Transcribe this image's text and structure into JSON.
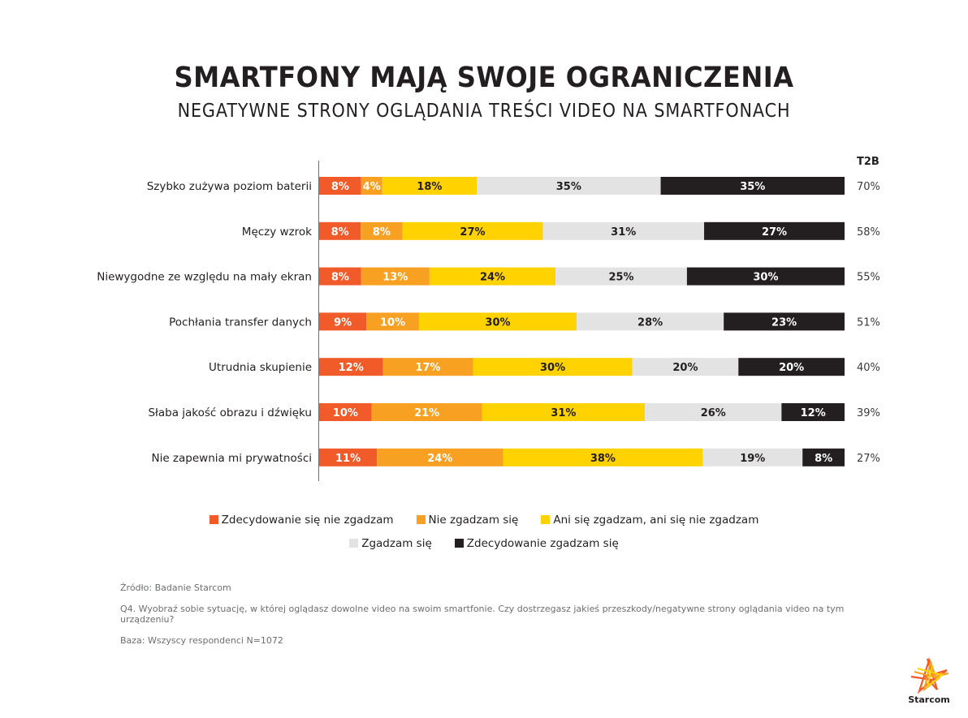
{
  "header": {
    "title": "SMARTFONY MAJĄ SWOJE OGRANICZENIA",
    "subtitle": "NEGATYWNE STRONY OGLĄDANIA TREŚCI VIDEO NA SMARTFONACH"
  },
  "chart_data": {
    "type": "bar",
    "orientation": "horizontal",
    "stacked": true,
    "title": "SMARTFONY MAJĄ SWOJE OGRANICZENIA",
    "subtitle": "NEGATYWNE STRONY OGLĄDANIA TREŚCI VIDEO NA SMARTFONACH",
    "xlabel": "",
    "ylabel": "",
    "unit": "%",
    "grid": false,
    "legend_position": "bottom",
    "categories": [
      "Szybko zużywa poziom baterii",
      "Męczy wzrok",
      "Niewygodne ze względu na mały ekran",
      "Pochłania transfer danych",
      "Utrudnia skupienie",
      "Słaba jakość obrazu i dźwięku",
      "Nie zapewnia mi prywatności"
    ],
    "series": [
      {
        "name": "Zdecydowanie się nie zgadzam",
        "color": "#F15A29",
        "label_color": "#ffffff",
        "values": [
          8,
          8,
          8,
          9,
          12,
          10,
          11
        ]
      },
      {
        "name": "Nie zgadzam się",
        "color": "#F7A021",
        "label_color": "#ffffff",
        "values": [
          4,
          8,
          13,
          10,
          17,
          21,
          24
        ]
      },
      {
        "name": "Ani się zgadzam, ani się nie zgadzam",
        "color": "#FFD200",
        "label_color": "#231f20",
        "values": [
          18,
          27,
          24,
          30,
          30,
          31,
          38
        ]
      },
      {
        "name": "Zgadzam się",
        "color": "#E3E3E3",
        "label_color": "#231f20",
        "values": [
          35,
          31,
          25,
          28,
          20,
          26,
          19
        ]
      },
      {
        "name": "Zdecydowanie zgadzam się",
        "color": "#231F20",
        "label_color": "#ffffff",
        "values": [
          35,
          27,
          30,
          23,
          20,
          12,
          8
        ]
      }
    ],
    "t2b": {
      "header": "T2B",
      "values": [
        "70%",
        "58%",
        "55%",
        "51%",
        "40%",
        "39%",
        "27%"
      ]
    }
  },
  "legend": {
    "row1": [
      {
        "label": "Zdecydowanie się nie zgadzam",
        "color": "#F15A29"
      },
      {
        "label": "Nie zgadzam się",
        "color": "#F7A021"
      },
      {
        "label": "Ani się zgadzam, ani się nie zgadzam",
        "color": "#FFD200"
      }
    ],
    "row2": [
      {
        "label": "Zgadzam się",
        "color": "#E3E3E3"
      },
      {
        "label": "Zdecydowanie zgadzam się",
        "color": "#231F20"
      }
    ]
  },
  "notes": {
    "source": "Źródło: Badanie Starcom",
    "question": "Q4. Wyobraź sobie sytuację, w której oglądasz dowolne video na swoim smartfonie. Czy dostrzegasz jakieś przeszkody/negatywne strony oglądania video na tym urządzeniu?",
    "base": "Baza: Wszyscy respondenci N=1072"
  },
  "logo": {
    "text": "Starcom",
    "colors": [
      "#F15A29",
      "#F7A021",
      "#FFD200"
    ]
  }
}
